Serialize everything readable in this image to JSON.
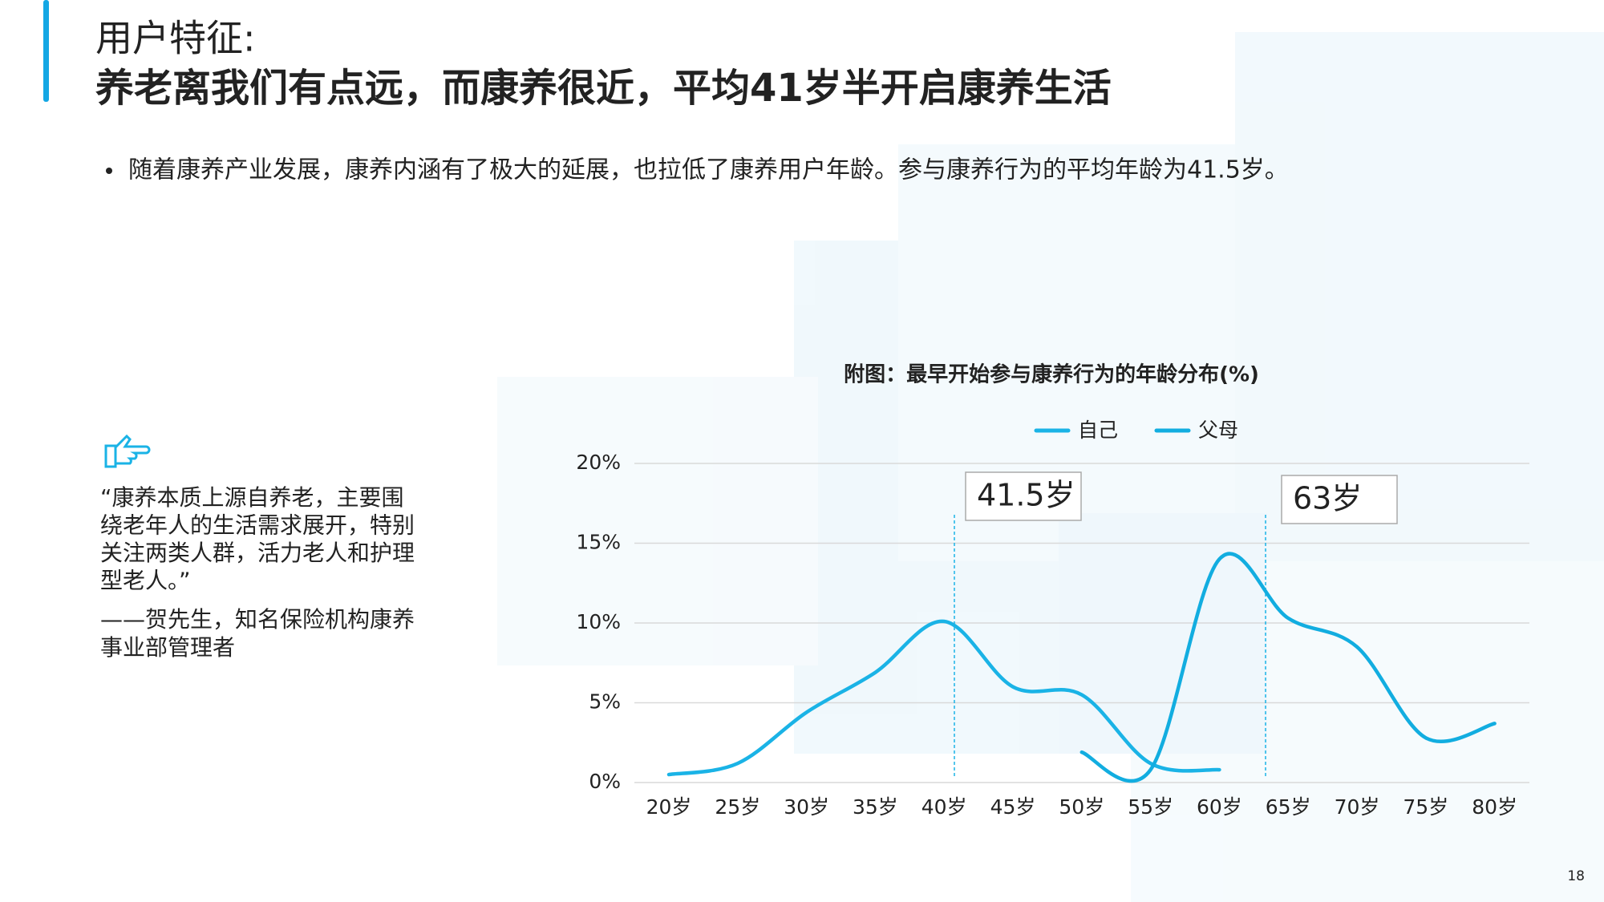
{
  "header": {
    "title": "用户特征:",
    "subtitle": "养老离我们有点远，而康养很近，平均41岁半开启康养生活"
  },
  "bullet": "随着康养产业发展，康养内涵有了极大的延展，也拉低了康养用户年龄。参与康养行为的平均年龄为41.5岁。",
  "quote": {
    "lines": [
      "“康养本质上源自养老，主要围",
      "绕老年人的生活需求展开，特别",
      "关注两类人群，活力老人和护理",
      "型老人。”"
    ],
    "attribution_lines": [
      "——贺先生，知名保险机构康养",
      "事业部管理者"
    ]
  },
  "page_number": "18",
  "chart_data": {
    "type": "line",
    "title": "附图：最早开始参与康养行为的年龄分布(%)",
    "categories": [
      "20岁",
      "25岁",
      "30岁",
      "35岁",
      "40岁",
      "45岁",
      "50岁",
      "55岁",
      "60岁",
      "65岁",
      "70岁",
      "75岁",
      "80岁"
    ],
    "series": [
      {
        "name": "自己",
        "color": "#1ab3e6",
        "values": [
          0.5,
          1.2,
          4.4,
          6.9,
          10.1,
          6.0,
          5.5,
          1.2,
          0.8,
          null,
          null,
          null,
          null
        ]
      },
      {
        "name": "父母",
        "color": "#12ade0",
        "values": [
          null,
          null,
          null,
          null,
          null,
          null,
          1.9,
          0.8,
          14.0,
          10.3,
          8.5,
          2.8,
          3.7
        ]
      }
    ],
    "ylim": [
      0,
      20
    ],
    "yticks": [
      {
        "value": 0,
        "label": "0%"
      },
      {
        "value": 5,
        "label": "5%"
      },
      {
        "value": 10,
        "label": "10%"
      },
      {
        "value": 15,
        "label": "15%"
      },
      {
        "value": 20,
        "label": "20%"
      }
    ],
    "grid": true,
    "smooth": true,
    "legend": "top",
    "annotations": [
      "41.5岁",
      "63岁"
    ]
  }
}
